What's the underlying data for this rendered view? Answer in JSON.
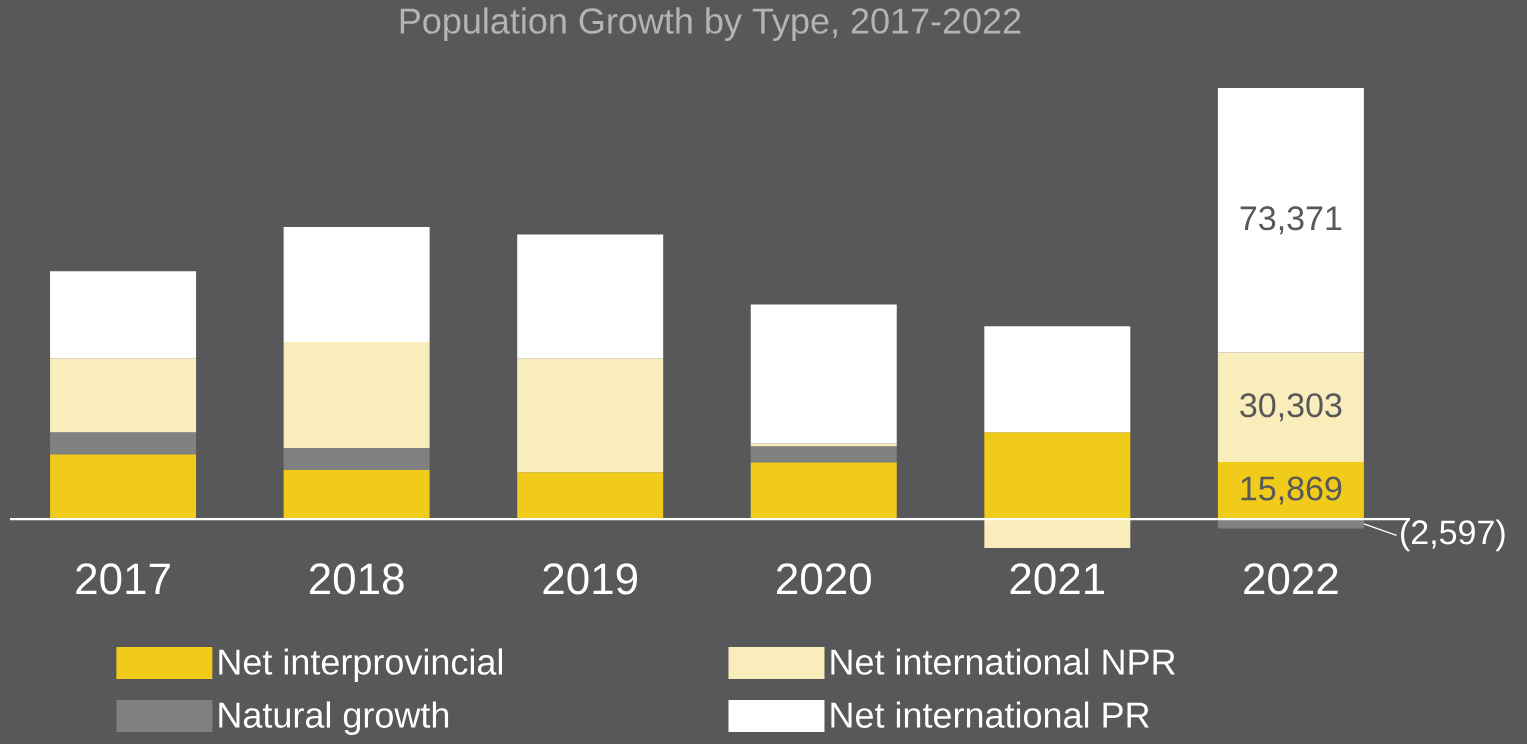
{
  "chart_data": {
    "type": "bar",
    "title": "Population Growth by Type, 2017-2022",
    "categories": [
      "2017",
      "2018",
      "2019",
      "2020",
      "2021",
      "2022"
    ],
    "stacked": true,
    "tick_labels": "x",
    "legend": "bottom",
    "series": [
      {
        "name": "Net interprovincial",
        "color": "#f0cb19",
        "values": [
          18000,
          13600,
          13000,
          15800,
          24100,
          15869
        ],
        "value_labels": [
          null,
          null,
          null,
          null,
          null,
          "15,869"
        ]
      },
      {
        "name": "Natural growth",
        "color": "#818181",
        "values": [
          6100,
          6100,
          null,
          4400,
          null,
          -2597
        ],
        "value_labels": [
          null,
          null,
          null,
          null,
          null,
          "(2,597)"
        ]
      },
      {
        "name": "Net international NPR",
        "color": "#f9edbb",
        "values": [
          20500,
          29400,
          31600,
          800,
          -8000,
          30303
        ],
        "value_labels": [
          null,
          null,
          null,
          null,
          null,
          "30,303"
        ]
      },
      {
        "name": "Net international PR",
        "color": "#ffffff",
        "values": [
          24100,
          31900,
          34300,
          38500,
          29400,
          73371
        ],
        "value_labels": [
          null,
          null,
          null,
          null,
          null,
          "73,371"
        ]
      }
    ]
  }
}
